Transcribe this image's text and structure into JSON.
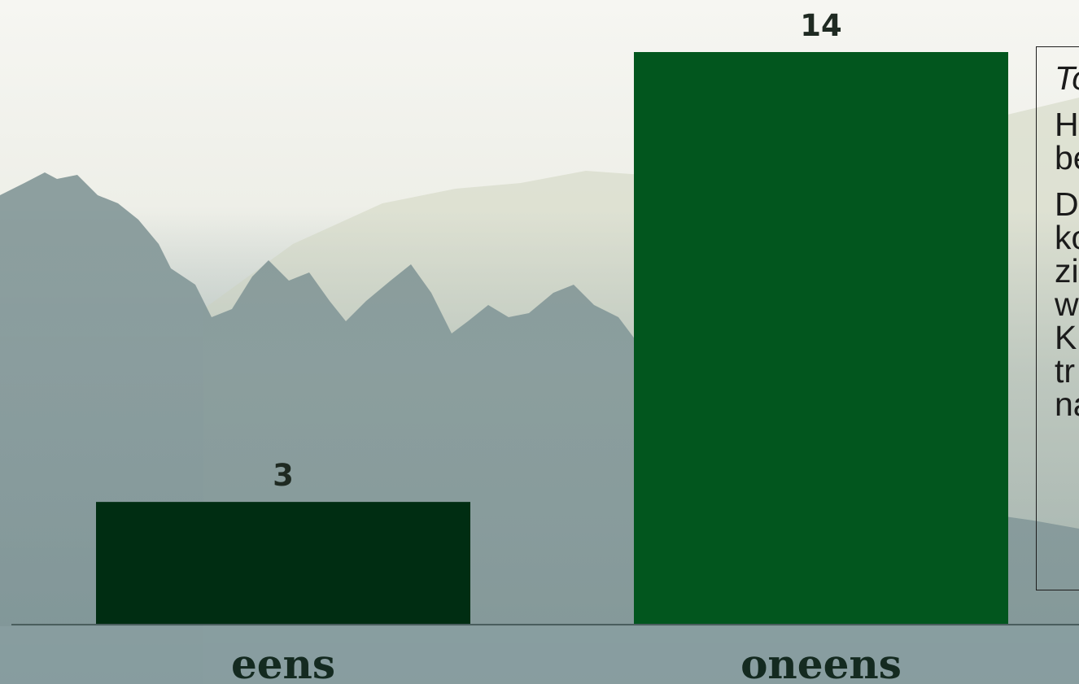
{
  "colors": {
    "bar_eens": "#002d12",
    "bar_oneens": "#02561e",
    "axis": "#4a5e5e"
  },
  "chart_data": {
    "type": "bar",
    "categories": [
      "eens",
      "oneens"
    ],
    "values": [
      3,
      14
    ],
    "title": "",
    "xlabel": "",
    "ylabel": "",
    "ylim": [
      0,
      14
    ],
    "data_labels": [
      "3",
      "14"
    ],
    "grid": false,
    "legend": "none"
  },
  "note": {
    "heading": "To",
    "paragraph1": "H\nbe",
    "paragraph2": "D\nko\nzi\nw\nK\ntr\nna"
  }
}
